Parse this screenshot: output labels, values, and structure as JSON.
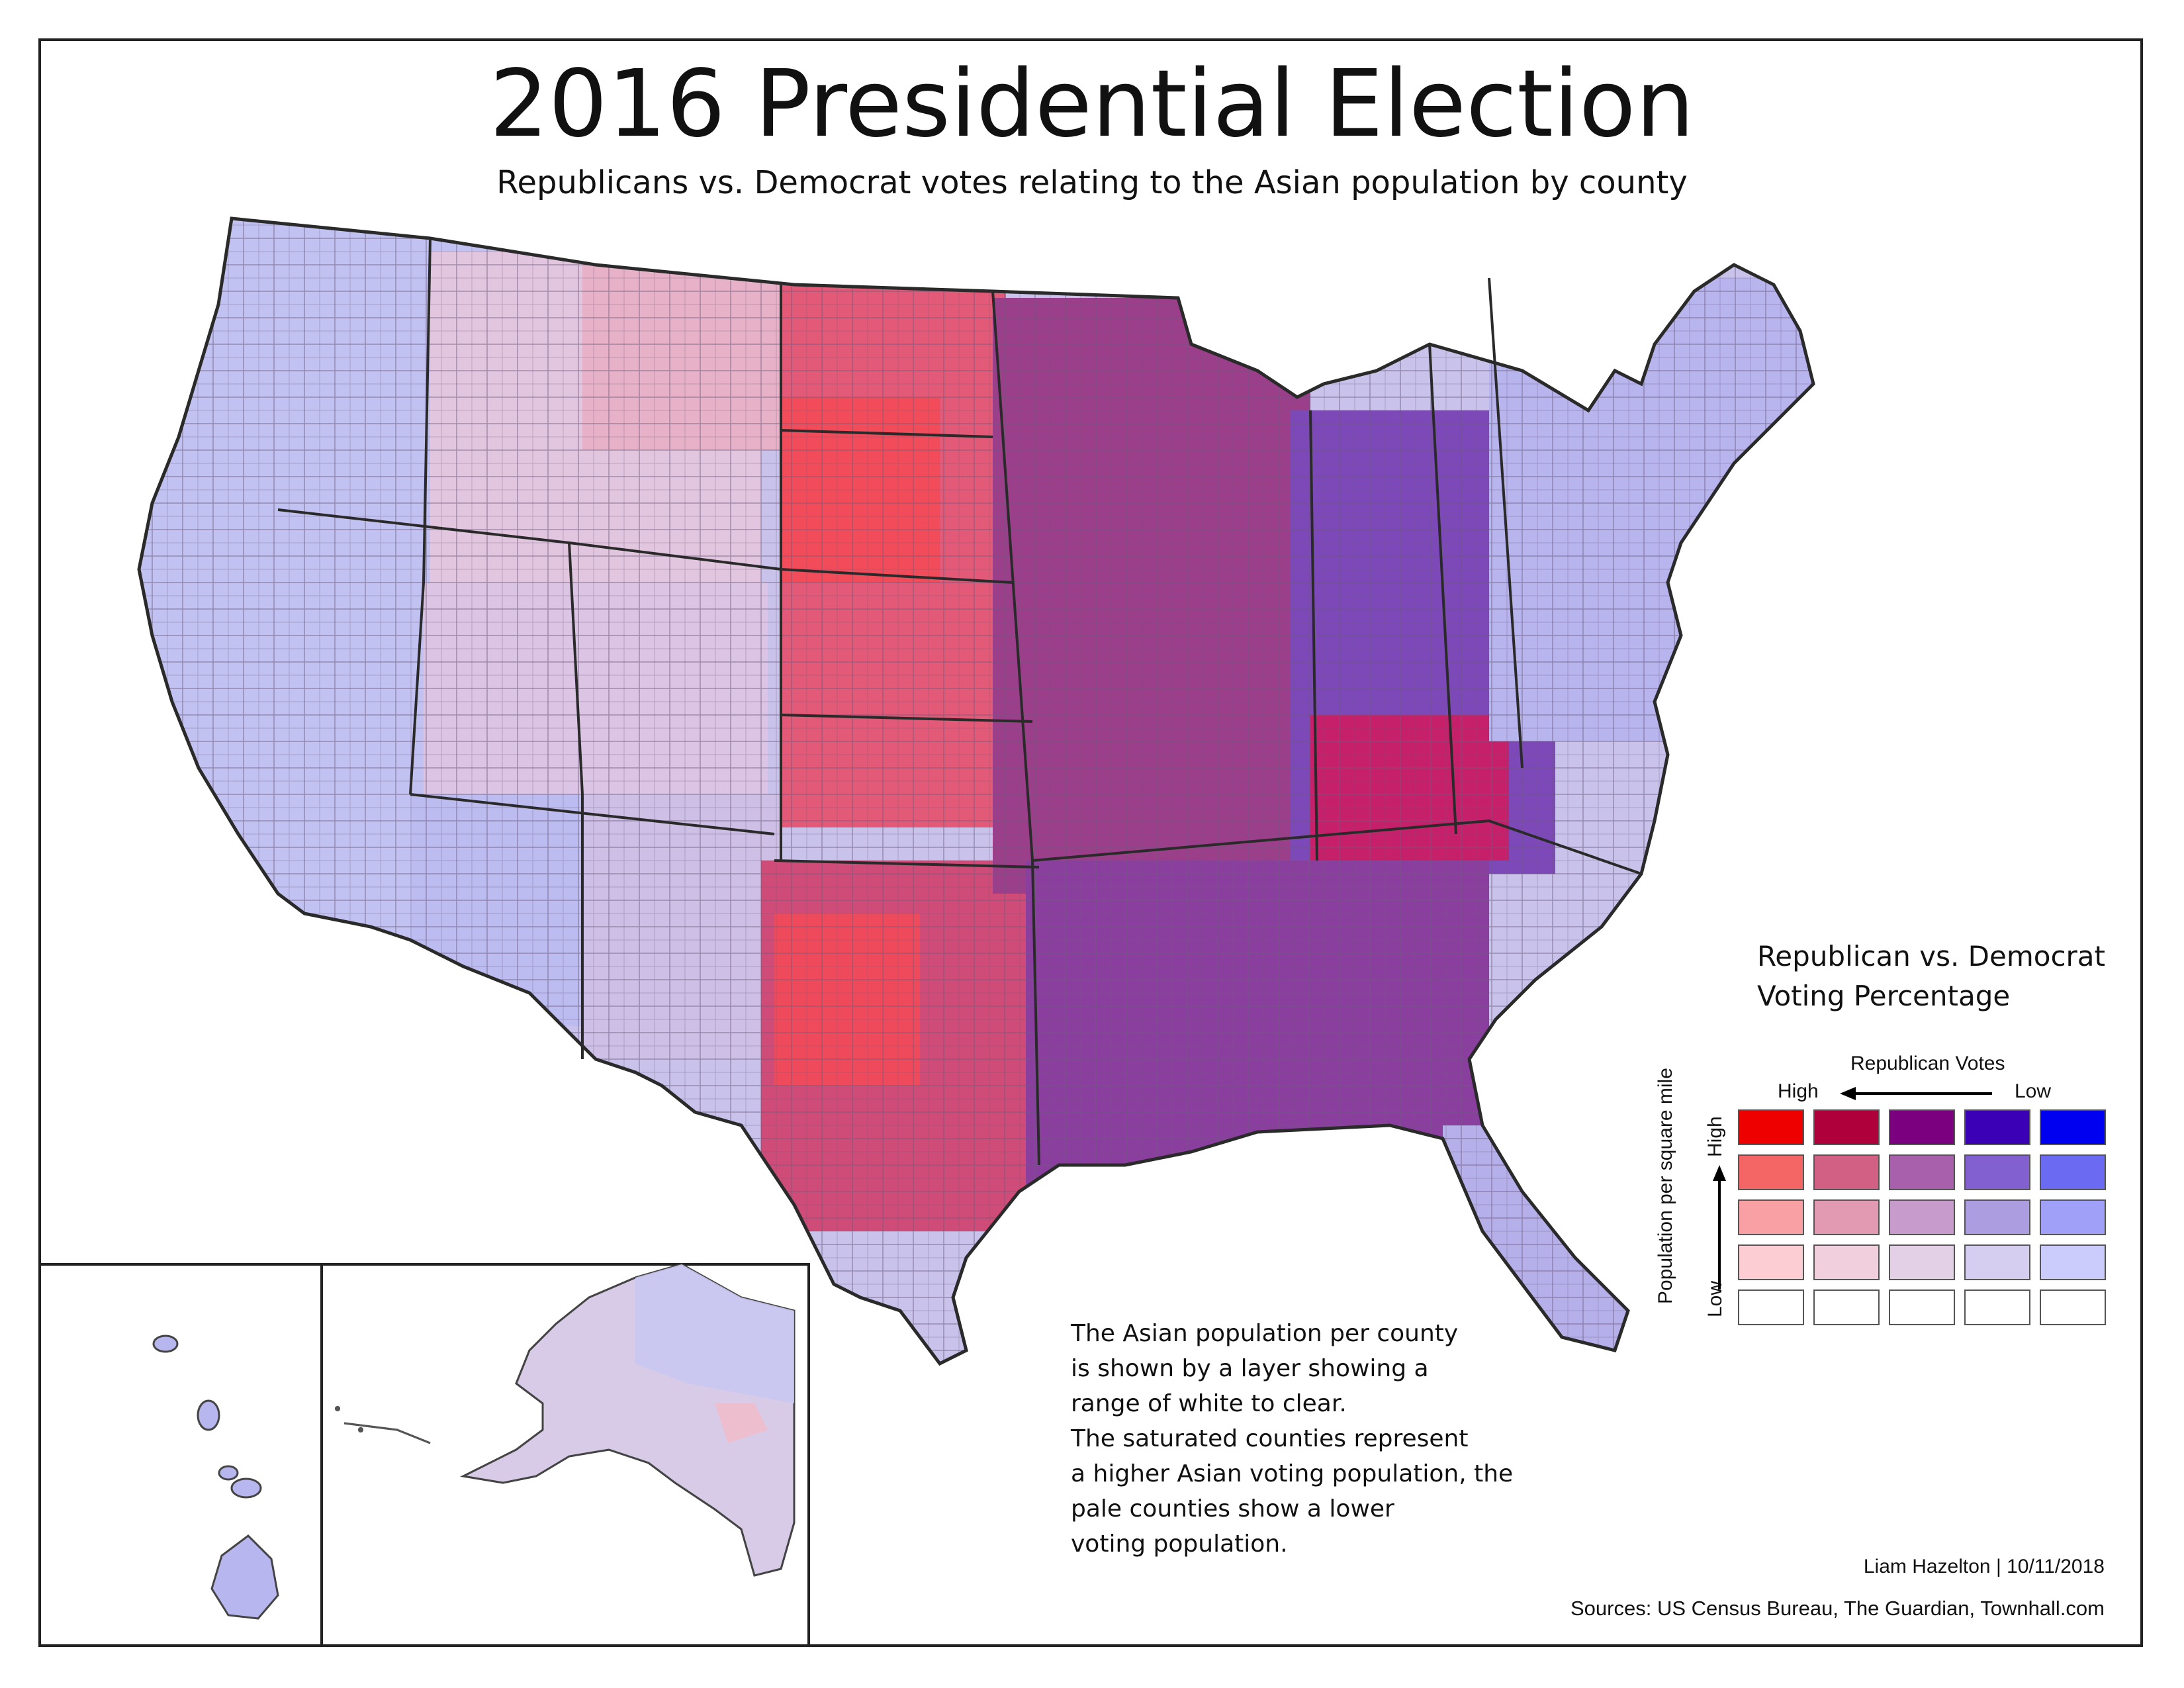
{
  "header": {
    "title": "2016 Presidential Election",
    "subtitle": "Republicans vs. Democrat votes relating to the Asian population by county"
  },
  "legend": {
    "title_line1": "Republican vs. Democrat",
    "title_line2": "Voting Percentage",
    "x_axis_label": "Republican Votes",
    "x_high": "High",
    "x_low": "Low",
    "y_axis_label": "Population per square mile",
    "y_high": "High",
    "y_low": "Low",
    "colors": [
      [
        "#ee0000",
        "#b0003c",
        "#7a0080",
        "#3b00b5",
        "#0000f0"
      ],
      [
        "#f46666",
        "#d16084",
        "#a860ad",
        "#8360d0",
        "#6a6af2"
      ],
      [
        "#f8a0a4",
        "#e19ab2",
        "#c79ccc",
        "#ac9ce0",
        "#a0a0f8"
      ],
      [
        "#fccdd2",
        "#f1cfdd",
        "#e3cfe6",
        "#d6cef0",
        "#ccccfc"
      ],
      [
        "#ffffff",
        "#ffffff",
        "#ffffff",
        "#ffffff",
        "#ffffff"
      ]
    ]
  },
  "note": {
    "lines": [
      "The Asian population per county",
      "is shown by a layer showing a",
      "range of white to clear.",
      "The saturated counties represent",
      "a higher Asian voting population, the",
      "pale counties show a lower",
      "voting population."
    ]
  },
  "footer": {
    "credit": "Liam Hazelton | 10/11/2018",
    "sources": "Sources: US Census Bureau, The Guardian, Townhall.com"
  }
}
